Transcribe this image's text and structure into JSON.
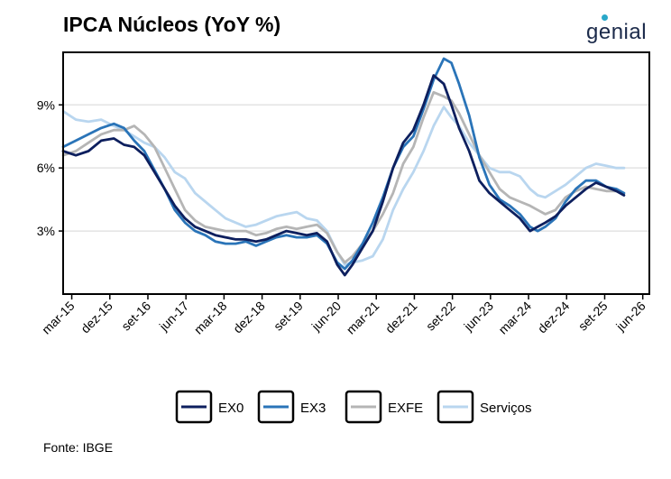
{
  "header": {
    "title": "IPCA Núcleos (YoY %)",
    "brand": "genial"
  },
  "footer": {
    "source": "Fonte: IBGE"
  },
  "colors": {
    "EX0": "#0d1f5e",
    "EX3": "#2a74b8",
    "EXFE": "#b5b5b5",
    "Servicos": "#b9d6ef"
  },
  "chart_data": {
    "type": "line",
    "title": "IPCA Núcleos (YoY %)",
    "xlabel": "",
    "ylabel": "",
    "y_unit": "%",
    "ylim": [
      0,
      11.5
    ],
    "xlim": [
      2015.0,
      2026.55
    ],
    "grid": "horizontal",
    "legend_position": "bottom",
    "y_ticks": [
      {
        "value": 3,
        "label": "3%"
      },
      {
        "value": 6,
        "label": "6%"
      },
      {
        "value": 9,
        "label": "9%"
      }
    ],
    "x_ticks": [
      {
        "value": 2015.17,
        "label": "mar-15"
      },
      {
        "value": 2015.92,
        "label": "dez-15"
      },
      {
        "value": 2016.67,
        "label": "set-16"
      },
      {
        "value": 2017.42,
        "label": "jun-17"
      },
      {
        "value": 2018.17,
        "label": "mar-18"
      },
      {
        "value": 2018.92,
        "label": "dez-18"
      },
      {
        "value": 2019.67,
        "label": "set-19"
      },
      {
        "value": 2020.42,
        "label": "jun-20"
      },
      {
        "value": 2021.17,
        "label": "mar-21"
      },
      {
        "value": 2021.92,
        "label": "dez-21"
      },
      {
        "value": 2022.67,
        "label": "set-22"
      },
      {
        "value": 2023.42,
        "label": "jun-23"
      },
      {
        "value": 2024.17,
        "label": "mar-24"
      },
      {
        "value": 2024.92,
        "label": "dez-24"
      },
      {
        "value": 2025.67,
        "label": "set-25"
      },
      {
        "value": 2026.42,
        "label": "jun-26"
      }
    ],
    "series": [
      {
        "name": "EX0",
        "key": "EX0",
        "x": [
          2015.0,
          2015.25,
          2015.5,
          2015.75,
          2016.0,
          2016.2,
          2016.4,
          2016.6,
          2016.8,
          2017.0,
          2017.2,
          2017.4,
          2017.6,
          2017.8,
          2018.0,
          2018.2,
          2018.4,
          2018.6,
          2018.8,
          2019.0,
          2019.2,
          2019.4,
          2019.6,
          2019.8,
          2020.0,
          2020.2,
          2020.4,
          2020.55,
          2020.7,
          2020.9,
          2021.1,
          2021.3,
          2021.5,
          2021.7,
          2021.9,
          2022.1,
          2022.3,
          2022.5,
          2022.65,
          2022.8,
          2023.0,
          2023.2,
          2023.4,
          2023.6,
          2023.8,
          2024.0,
          2024.2,
          2024.35,
          2024.5,
          2024.7,
          2024.9,
          2025.1,
          2025.3,
          2025.5,
          2025.7,
          2025.9,
          2026.05
        ],
        "values": [
          6.8,
          6.6,
          6.8,
          7.3,
          7.4,
          7.1,
          7.0,
          6.6,
          5.8,
          5.0,
          4.2,
          3.6,
          3.2,
          3.0,
          2.8,
          2.7,
          2.6,
          2.6,
          2.5,
          2.6,
          2.8,
          3.0,
          2.9,
          2.8,
          2.9,
          2.5,
          1.4,
          0.9,
          1.4,
          2.2,
          3.0,
          4.4,
          6.0,
          7.2,
          7.8,
          9.0,
          10.4,
          10.0,
          9.0,
          7.9,
          6.8,
          5.4,
          4.8,
          4.4,
          4.0,
          3.6,
          3.0,
          3.2,
          3.4,
          3.7,
          4.2,
          4.6,
          5.0,
          5.3,
          5.1,
          4.9,
          4.7
        ]
      },
      {
        "name": "EX3",
        "key": "EX3",
        "x": [
          2015.0,
          2015.25,
          2015.5,
          2015.75,
          2016.0,
          2016.2,
          2016.4,
          2016.6,
          2016.8,
          2017.0,
          2017.2,
          2017.4,
          2017.6,
          2017.8,
          2018.0,
          2018.2,
          2018.4,
          2018.6,
          2018.8,
          2019.0,
          2019.2,
          2019.4,
          2019.6,
          2019.8,
          2020.0,
          2020.2,
          2020.4,
          2020.55,
          2020.7,
          2020.9,
          2021.1,
          2021.3,
          2021.5,
          2021.7,
          2021.9,
          2022.1,
          2022.3,
          2022.5,
          2022.65,
          2022.8,
          2023.0,
          2023.2,
          2023.4,
          2023.6,
          2023.8,
          2024.0,
          2024.2,
          2024.35,
          2024.5,
          2024.7,
          2024.9,
          2025.1,
          2025.3,
          2025.5,
          2025.7,
          2025.9,
          2026.05
        ],
        "values": [
          7.0,
          7.3,
          7.6,
          7.9,
          8.1,
          7.9,
          7.3,
          6.8,
          5.9,
          5.0,
          4.0,
          3.4,
          3.0,
          2.8,
          2.5,
          2.4,
          2.4,
          2.5,
          2.3,
          2.5,
          2.7,
          2.8,
          2.7,
          2.7,
          2.8,
          2.4,
          1.5,
          1.2,
          1.6,
          2.4,
          3.4,
          4.6,
          6.0,
          7.0,
          7.5,
          8.8,
          10.2,
          11.2,
          11.0,
          10.0,
          8.5,
          6.5,
          5.2,
          4.5,
          4.2,
          3.8,
          3.2,
          3.0,
          3.2,
          3.6,
          4.4,
          5.0,
          5.4,
          5.4,
          5.1,
          5.0,
          4.8
        ]
      },
      {
        "name": "EXFE",
        "key": "EXFE",
        "x": [
          2015.0,
          2015.25,
          2015.5,
          2015.75,
          2016.0,
          2016.2,
          2016.4,
          2016.6,
          2016.8,
          2017.0,
          2017.2,
          2017.4,
          2017.6,
          2017.8,
          2018.0,
          2018.2,
          2018.4,
          2018.6,
          2018.8,
          2019.0,
          2019.2,
          2019.4,
          2019.6,
          2019.8,
          2020.0,
          2020.2,
          2020.4,
          2020.55,
          2020.7,
          2020.9,
          2021.1,
          2021.3,
          2021.5,
          2021.7,
          2021.9,
          2022.1,
          2022.3,
          2022.5,
          2022.65,
          2022.8,
          2023.0,
          2023.2,
          2023.4,
          2023.6,
          2023.8,
          2024.0,
          2024.2,
          2024.35,
          2024.5,
          2024.7,
          2024.9,
          2025.1,
          2025.3,
          2025.5,
          2025.7,
          2025.9,
          2026.05
        ],
        "values": [
          6.6,
          6.8,
          7.2,
          7.6,
          7.8,
          7.8,
          8.0,
          7.6,
          7.0,
          6.0,
          5.0,
          4.0,
          3.5,
          3.2,
          3.1,
          3.0,
          3.0,
          3.0,
          2.8,
          2.9,
          3.1,
          3.2,
          3.1,
          3.2,
          3.3,
          2.9,
          2.0,
          1.5,
          1.8,
          2.4,
          3.0,
          3.8,
          4.8,
          6.2,
          7.0,
          8.4,
          9.6,
          9.4,
          9.2,
          8.6,
          7.6,
          6.6,
          5.8,
          5.0,
          4.6,
          4.4,
          4.2,
          4.0,
          3.8,
          4.0,
          4.6,
          4.9,
          5.1,
          5.0,
          4.9,
          4.9,
          4.8
        ]
      },
      {
        "name": "Serviços",
        "key": "Servicos",
        "x": [
          2015.0,
          2015.25,
          2015.5,
          2015.75,
          2016.0,
          2016.2,
          2016.4,
          2016.6,
          2016.8,
          2017.0,
          2017.2,
          2017.4,
          2017.6,
          2017.8,
          2018.0,
          2018.2,
          2018.4,
          2018.6,
          2018.8,
          2019.0,
          2019.2,
          2019.4,
          2019.6,
          2019.8,
          2020.0,
          2020.2,
          2020.4,
          2020.55,
          2020.7,
          2020.9,
          2021.1,
          2021.3,
          2021.5,
          2021.7,
          2021.9,
          2022.1,
          2022.3,
          2022.5,
          2022.65,
          2022.8,
          2023.0,
          2023.2,
          2023.4,
          2023.6,
          2023.8,
          2024.0,
          2024.2,
          2024.35,
          2024.5,
          2024.7,
          2024.9,
          2025.1,
          2025.3,
          2025.5,
          2025.7,
          2025.9,
          2026.05
        ],
        "values": [
          8.7,
          8.3,
          8.2,
          8.3,
          8.0,
          7.8,
          7.5,
          7.2,
          7.0,
          6.5,
          5.8,
          5.5,
          4.8,
          4.4,
          4.0,
          3.6,
          3.4,
          3.2,
          3.3,
          3.5,
          3.7,
          3.8,
          3.9,
          3.6,
          3.5,
          3.0,
          2.0,
          1.4,
          1.5,
          1.6,
          1.8,
          2.6,
          4.0,
          5.0,
          5.8,
          6.8,
          8.0,
          8.9,
          8.4,
          8.0,
          7.2,
          6.6,
          6.0,
          5.8,
          5.8,
          5.6,
          5.0,
          4.7,
          4.6,
          4.9,
          5.2,
          5.6,
          6.0,
          6.2,
          6.1,
          6.0,
          6.0
        ]
      }
    ]
  }
}
